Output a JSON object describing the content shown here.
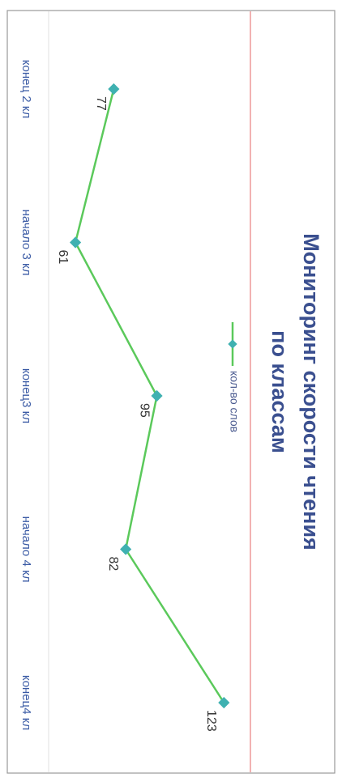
{
  "chart_data": {
    "type": "line",
    "title": "Мониторинг скорости чтения по классам",
    "title_lines": [
      "Мониторинг скорости чтения",
      "по классам"
    ],
    "categories": [
      "конец 2 кл",
      "начало 3 кл",
      "конец3 кл",
      "начало 4 кл",
      "конец4 кл"
    ],
    "series": [
      {
        "name": "кол-во слов",
        "values": [
          77,
          61,
          95,
          82,
          123
        ]
      }
    ],
    "data_labels": [
      "77",
      "61",
      "95",
      "82",
      "123"
    ],
    "ylim": [
      40,
      130
    ],
    "orientation": "rotated-90-clockwise",
    "legend_position": "top",
    "grid": false,
    "colors": {
      "line": "#5bc95b",
      "marker": "#3fb1b1",
      "title": "#3a4f8f",
      "category_text": "#3b5ba5",
      "border": "#999999",
      "divider": "#e88080"
    }
  }
}
